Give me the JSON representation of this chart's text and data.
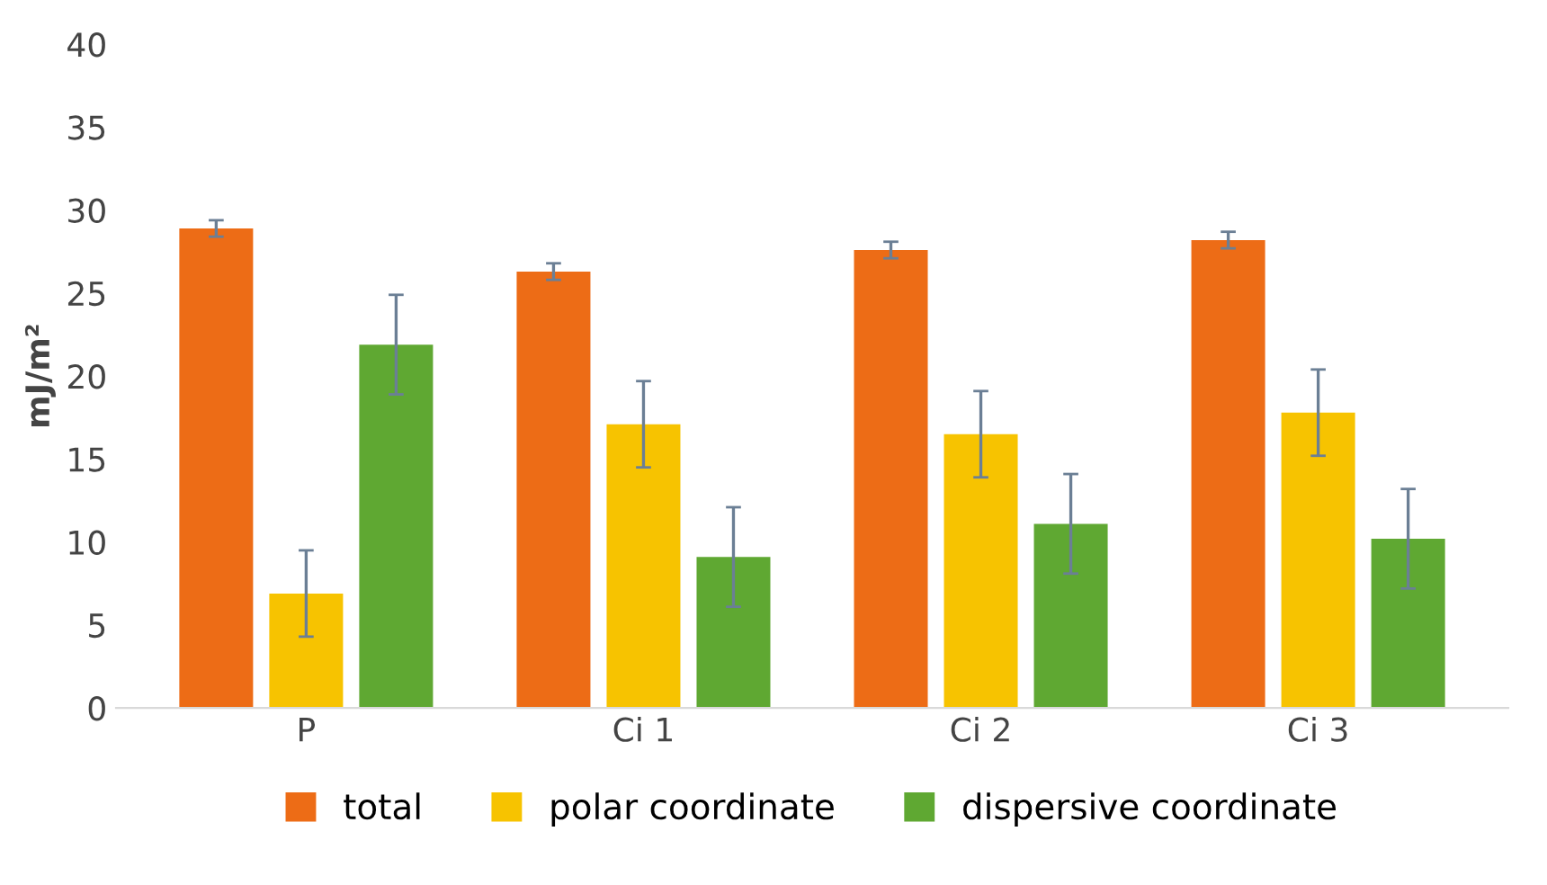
{
  "chart_data": {
    "type": "bar",
    "ylabel": "mJ/m²",
    "categories": [
      "P",
      "Ci 1",
      "Ci 2",
      "Ci 3"
    ],
    "series": [
      {
        "name": "total",
        "color": "#ed6c16",
        "values": [
          28.9,
          26.3,
          27.6,
          28.2
        ],
        "errors": [
          0.5,
          0.5,
          0.5,
          0.5
        ]
      },
      {
        "name": "polar coordinate",
        "color": "#f7c300",
        "values": [
          6.9,
          17.1,
          16.5,
          17.8
        ],
        "errors": [
          2.6,
          2.6,
          2.6,
          2.6
        ]
      },
      {
        "name": "dispersive coordinate",
        "color": "#5fa832",
        "values": [
          21.9,
          9.1,
          11.1,
          10.2
        ],
        "errors": [
          3.0,
          3.0,
          3.0,
          3.0
        ]
      }
    ],
    "ylim": [
      0,
      40
    ],
    "yticks": [
      0,
      5,
      10,
      15,
      20,
      25,
      30,
      35,
      40
    ],
    "grid": false,
    "legend": "bottom"
  }
}
